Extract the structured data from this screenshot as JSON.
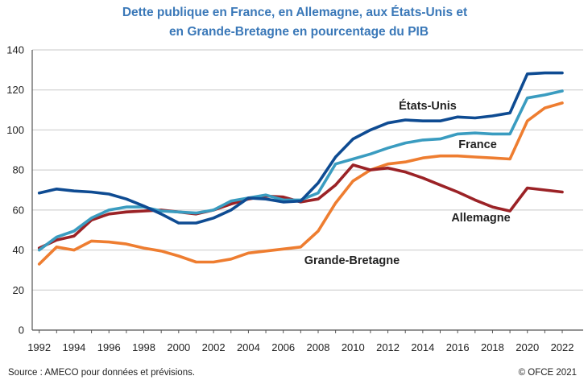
{
  "chart_data": {
    "type": "line",
    "title_lines": [
      "Dette publique en France, en Allemagne, aux États-Unis et",
      "en Grande-Bretagne en pourcentage du PIB"
    ],
    "x": [
      1992,
      1993,
      1994,
      1995,
      1996,
      1997,
      1998,
      1999,
      2000,
      2001,
      2002,
      2003,
      2004,
      2005,
      2006,
      2007,
      2008,
      2009,
      2010,
      2011,
      2012,
      2013,
      2014,
      2015,
      2016,
      2017,
      2018,
      2019,
      2020,
      2021,
      2022
    ],
    "xticks": [
      "1992",
      "1994",
      "1996",
      "1998",
      "2000",
      "2002",
      "2004",
      "2006",
      "2008",
      "2010",
      "2012",
      "2014",
      "2016",
      "2018",
      "2020",
      "2022"
    ],
    "yticks": [
      "0",
      "20",
      "40",
      "60",
      "80",
      "100",
      "120",
      "140"
    ],
    "ylim": [
      0,
      140
    ],
    "xlim": [
      1991.6,
      2023.2
    ],
    "grid": "horizontal",
    "series": [
      {
        "name": "Grande-Bretagne",
        "color": "#ee7d30",
        "values": [
          33,
          41.5,
          40,
          44.5,
          44,
          43,
          41,
          39.5,
          37,
          34,
          34,
          35.5,
          38.5,
          39.5,
          40.5,
          41.5,
          49.5,
          63.5,
          74.5,
          80,
          83,
          84,
          86,
          87,
          87,
          86.5,
          86,
          85.5,
          104.5,
          111,
          113.5
        ]
      },
      {
        "name": "Allemagne",
        "color": "#9b2226",
        "values": [
          41,
          45,
          47,
          55,
          58,
          59,
          59.5,
          60,
          59,
          58,
          60,
          63,
          65.5,
          67,
          66.5,
          64,
          65.5,
          72.5,
          82.5,
          80,
          81,
          79,
          76,
          72.5,
          69,
          65,
          61.5,
          59.5,
          71,
          70,
          69
        ]
      },
      {
        "name": "France",
        "color": "#3a9cc0",
        "values": [
          40,
          46.5,
          49.5,
          56,
          60,
          61.5,
          61.5,
          59.5,
          59,
          58.5,
          60,
          64.5,
          66,
          67.5,
          65,
          65,
          68.5,
          83,
          85.5,
          88,
          91,
          93.5,
          95,
          95.5,
          98,
          98.5,
          98,
          98,
          116,
          117.5,
          119.5
        ]
      },
      {
        "name": "États-Unis",
        "color": "#0e4b92",
        "values": [
          68.5,
          70.5,
          69.5,
          69,
          68,
          65.5,
          62,
          58,
          53.5,
          53.5,
          56,
          60,
          66,
          65.5,
          64,
          64.5,
          73.5,
          86.5,
          95.5,
          100,
          103.5,
          105,
          104.5,
          104.5,
          106.5,
          106,
          107,
          108.5,
          128,
          128.5,
          128.5
        ]
      }
    ]
  },
  "footer": {
    "source": "Source :  AMECO pour données et prévisions.",
    "copyright": "© OFCE 2021"
  }
}
